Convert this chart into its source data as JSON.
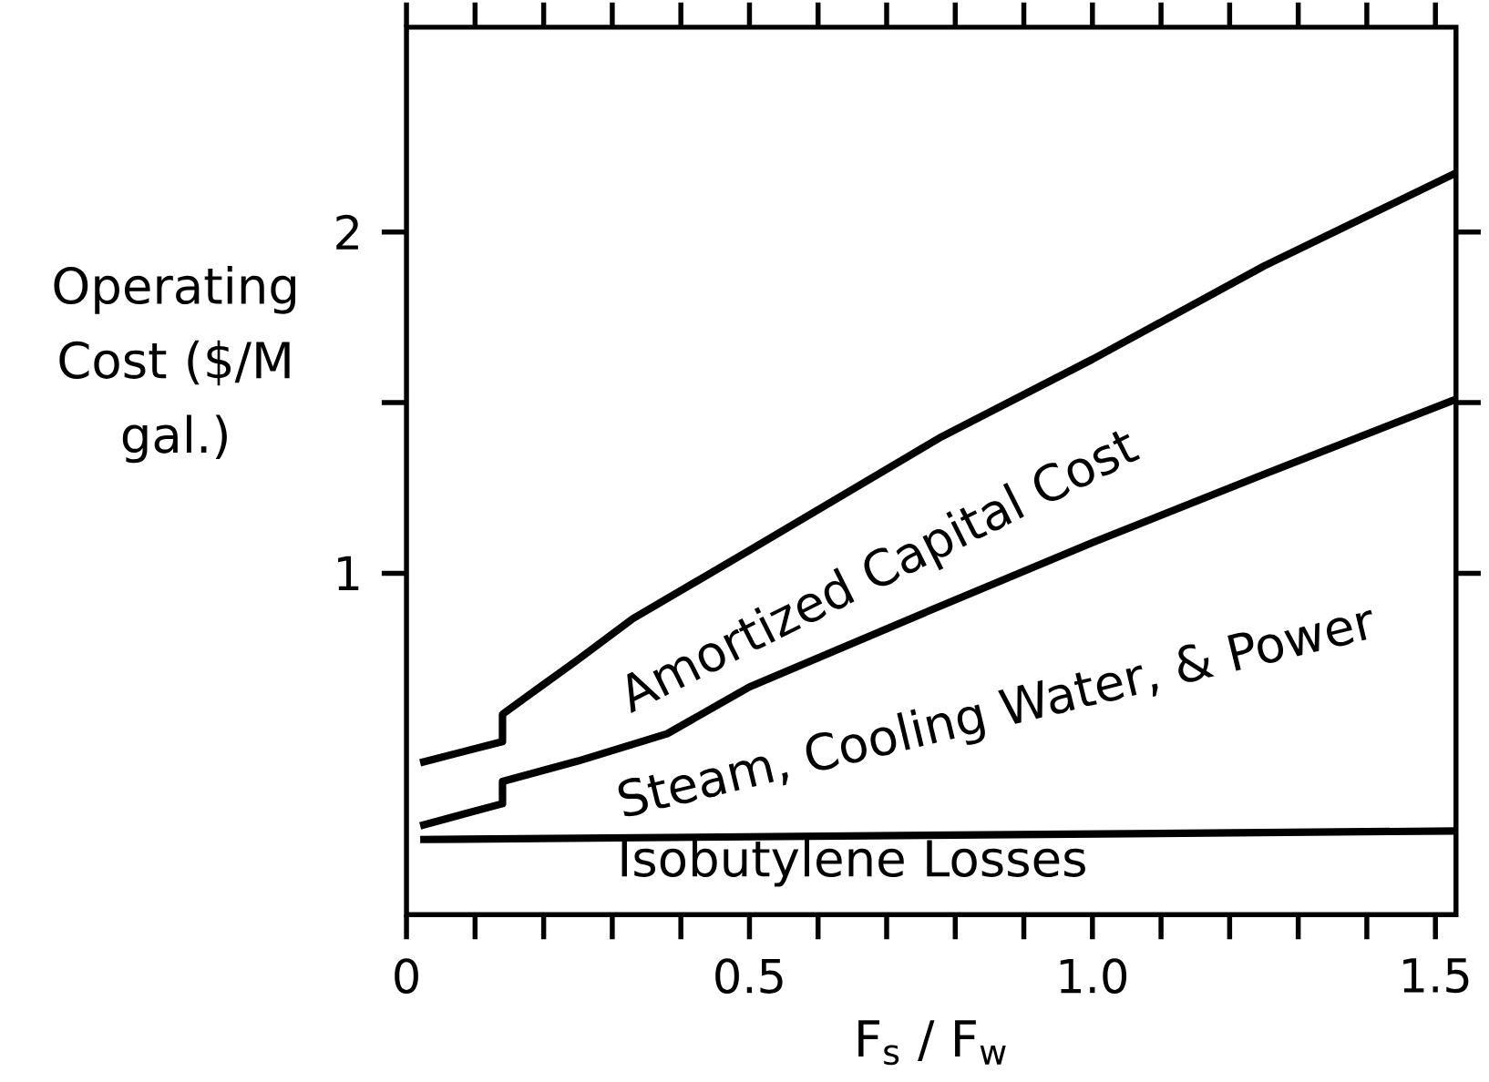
{
  "chart_data": {
    "type": "line",
    "xlabel": "F$_{s}$ / F$_{w}$",
    "ylabel": "Operating Cost ($/M gal.)",
    "xlim": [
      0,
      1.53
    ],
    "ylim": [
      0,
      2.6
    ],
    "xticks": [
      0,
      0.5,
      {
        "value": 1.0,
        "label": "1.0"
      },
      1.5
    ],
    "yticks": [
      1,
      2
    ],
    "series": [
      {
        "color": "#000000",
        "x": [
          0.02,
          1.53
        ],
        "values": [
          0.22,
          0.245
        ]
      },
      {
        "color": "#000000",
        "x": [
          0.02,
          0.14,
          0.14,
          0.25,
          0.38,
          0.5,
          0.75,
          1.0,
          1.25,
          1.53
        ],
        "values": [
          0.26,
          0.325,
          0.39,
          0.45,
          0.53,
          0.667,
          0.88,
          1.09,
          1.29,
          1.51
        ]
      },
      {
        "color": "#000000",
        "x": [
          0.02,
          0.14,
          0.14,
          0.19,
          0.25,
          0.33,
          0.5,
          0.78,
          1.0,
          1.25,
          1.53
        ],
        "values": [
          0.445,
          0.507,
          0.587,
          0.66,
          0.747,
          0.867,
          1.067,
          1.4,
          1.627,
          1.9,
          2.173
        ]
      }
    ],
    "annotations": [
      "Isobutylene Losses",
      "Steam, Cooling Water, & Power",
      "Amortized Capital Cost"
    ],
    "grid": false,
    "marker": "none",
    "line_style": "solid"
  }
}
